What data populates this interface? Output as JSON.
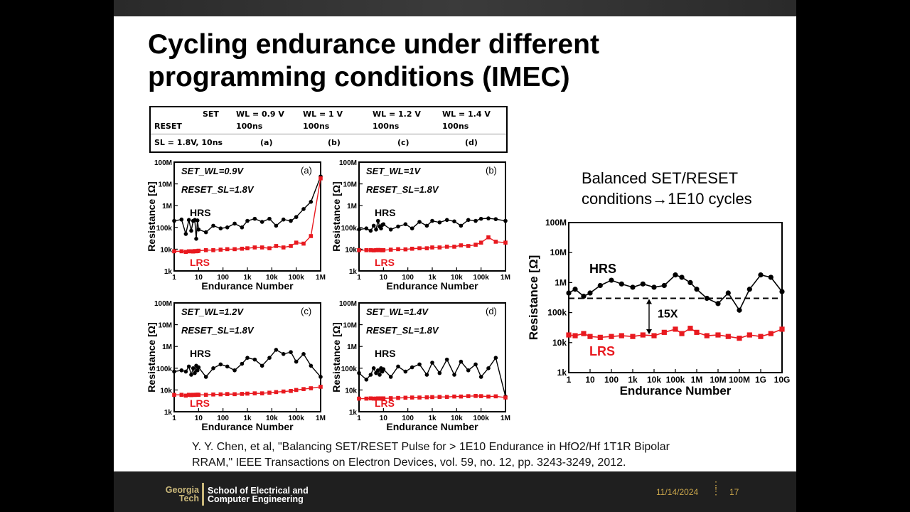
{
  "slide": {
    "title_line1": "Cycling endurance under different",
    "title_line2": "programming conditions (IMEC)",
    "note_line1": "Balanced SET/RESET",
    "note_line2": "conditions→1E10 cycles",
    "citation_line1": "Y. Y. Chen, et al, \"Balancing SET/RESET Pulse for > 1E10 Endurance in HfO2/Hf 1T1R Bipolar",
    "citation_line2": "RRAM,\" IEEE Transactions on Electron Devices, vol. 59, no. 12, pp. 3243-3249, 2012."
  },
  "table": {
    "set": "SET",
    "reset": "RESET",
    "sl": "SL = 1.8V, 10ns",
    "cols": [
      {
        "wl": "WL = 0.9 V",
        "t": "100ns",
        "tag": "(a)"
      },
      {
        "wl": "WL = 1 V",
        "t": "100ns",
        "tag": "(b)"
      },
      {
        "wl": "WL = 1.2 V",
        "t": "100ns",
        "tag": "(c)"
      },
      {
        "wl": "WL = 1.4 V",
        "t": "100ns",
        "tag": "(d)"
      }
    ]
  },
  "footer": {
    "logo_top": "Georgia",
    "logo_bottom": "Tech",
    "school_line1": "School of Electrical and",
    "school_line2": "Computer Engineering",
    "date": "11/14/2024",
    "page": "17"
  },
  "colors": {
    "hrs": "#000000",
    "lrs": "#e8191f",
    "accent": "#c9a54b"
  },
  "chart_data": [
    {
      "type": "scatter",
      "panel": "(a)",
      "annotations": [
        "SET_WL=0.9V",
        "RESET_SL=1.8V"
      ],
      "xlabel": "Endurance Number",
      "ylabel": "Resistance [Ω]",
      "xlim": [
        1,
        1000000
      ],
      "ylim": [
        1000,
        100000000
      ],
      "xscale": "log",
      "yscale": "log",
      "x_ticks": [
        "1",
        "10",
        "100",
        "1k",
        "10k",
        "100k",
        "1M"
      ],
      "y_ticks": [
        "1k",
        "10k",
        "100k",
        "1M",
        "10M",
        "100M"
      ],
      "series": [
        {
          "name": "HRS",
          "x": [
            1,
            2,
            3,
            4,
            5,
            6,
            7,
            8,
            9,
            10,
            20,
            40,
            80,
            150,
            300,
            600,
            1000,
            2000,
            4000,
            8000,
            15000,
            30000,
            60000,
            100000,
            200000,
            400000,
            1000000
          ],
          "y": [
            200000,
            230000,
            50000,
            220000,
            70000,
            200000,
            220000,
            30000,
            210000,
            80000,
            60000,
            120000,
            90000,
            100000,
            150000,
            100000,
            200000,
            250000,
            180000,
            250000,
            120000,
            230000,
            200000,
            300000,
            700000,
            1500000,
            22000000
          ]
        },
        {
          "name": "LRS",
          "x": [
            1,
            2,
            3,
            4,
            5,
            6,
            7,
            8,
            9,
            10,
            20,
            40,
            80,
            150,
            300,
            600,
            1000,
            2000,
            4000,
            8000,
            15000,
            30000,
            60000,
            100000,
            200000,
            400000,
            1000000
          ],
          "y": [
            8000,
            8000,
            7500,
            8000,
            8000,
            7800,
            8200,
            8000,
            8100,
            8500,
            9000,
            9000,
            9500,
            10000,
            10000,
            10500,
            11000,
            12000,
            12000,
            11000,
            14000,
            12000,
            14000,
            20000,
            18000,
            40000,
            18000000
          ]
        }
      ]
    },
    {
      "type": "scatter",
      "panel": "(b)",
      "annotations": [
        "SET_WL=1V",
        "RESET_SL=1.8V"
      ],
      "xlabel": "Endurance Number",
      "ylabel": "Resistance [Ω]",
      "xlim": [
        1,
        1000000
      ],
      "ylim": [
        1000,
        100000000
      ],
      "xscale": "log",
      "yscale": "log",
      "x_ticks": [
        "1",
        "10",
        "100",
        "1k",
        "10k",
        "100k",
        "1M"
      ],
      "y_ticks": [
        "1k",
        "10k",
        "100k",
        "1M",
        "10M",
        "100M"
      ],
      "series": [
        {
          "name": "HRS",
          "x": [
            1,
            2,
            3,
            4,
            5,
            6,
            7,
            8,
            9,
            10,
            20,
            40,
            80,
            150,
            300,
            600,
            1000,
            2000,
            4000,
            8000,
            15000,
            30000,
            60000,
            100000,
            200000,
            400000,
            1000000
          ],
          "y": [
            80000,
            90000,
            70000,
            120000,
            80000,
            200000,
            110000,
            90000,
            130000,
            140000,
            80000,
            110000,
            140000,
            90000,
            180000,
            120000,
            200000,
            170000,
            220000,
            190000,
            120000,
            220000,
            200000,
            250000,
            260000,
            240000,
            200000
          ]
        },
        {
          "name": "LRS",
          "x": [
            1,
            2,
            3,
            4,
            5,
            6,
            7,
            8,
            9,
            10,
            20,
            40,
            80,
            150,
            300,
            600,
            1000,
            2000,
            4000,
            8000,
            15000,
            30000,
            60000,
            100000,
            200000,
            400000,
            1000000
          ],
          "y": [
            9000,
            9000,
            9000,
            8800,
            9000,
            9200,
            9000,
            9100,
            8900,
            9000,
            9500,
            10000,
            9800,
            10500,
            11000,
            11000,
            12000,
            12000,
            13000,
            13000,
            15000,
            14000,
            16000,
            20000,
            35000,
            22000,
            20000
          ]
        }
      ]
    },
    {
      "type": "scatter",
      "panel": "(c)",
      "annotations": [
        "SET_WL=1.2V",
        "RESET_SL=1.8V"
      ],
      "xlabel": "Endurance Number",
      "ylabel": "Resistance [Ω]",
      "xlim": [
        1,
        1000000
      ],
      "ylim": [
        1000,
        100000000
      ],
      "xscale": "log",
      "yscale": "log",
      "x_ticks": [
        "1",
        "10",
        "100",
        "1k",
        "10k",
        "100k",
        "1M"
      ],
      "y_ticks": [
        "1k",
        "10k",
        "100k",
        "1M",
        "10M",
        "100M"
      ],
      "series": [
        {
          "name": "HRS",
          "x": [
            1,
            2,
            3,
            4,
            5,
            6,
            7,
            8,
            9,
            10,
            20,
            40,
            80,
            150,
            300,
            600,
            1000,
            2000,
            4000,
            8000,
            15000,
            30000,
            60000,
            100000,
            200000,
            400000,
            1000000
          ],
          "y": [
            70000,
            80000,
            70000,
            120000,
            50000,
            100000,
            60000,
            130000,
            80000,
            110000,
            40000,
            100000,
            150000,
            120000,
            80000,
            160000,
            300000,
            250000,
            130000,
            300000,
            700000,
            450000,
            550000,
            200000,
            450000,
            130000,
            40000
          ]
        },
        {
          "name": "LRS",
          "x": [
            1,
            2,
            3,
            4,
            5,
            6,
            7,
            8,
            9,
            10,
            20,
            40,
            80,
            150,
            300,
            600,
            1000,
            2000,
            4000,
            8000,
            15000,
            30000,
            60000,
            100000,
            200000,
            400000,
            1000000
          ],
          "y": [
            6000,
            6000,
            5500,
            6000,
            5800,
            6000,
            5900,
            6000,
            6100,
            6000,
            6000,
            6200,
            6300,
            6500,
            6400,
            6600,
            6800,
            7000,
            7000,
            7500,
            8000,
            8500,
            9000,
            10000,
            11000,
            12000,
            14000
          ]
        }
      ]
    },
    {
      "type": "scatter",
      "panel": "(d)",
      "annotations": [
        "SET_WL=1.4V",
        "RESET_SL=1.8V"
      ],
      "xlabel": "Endurance Number",
      "ylabel": "Resistance [Ω]",
      "xlim": [
        1,
        1000000
      ],
      "ylim": [
        1000,
        100000000
      ],
      "xscale": "log",
      "yscale": "log",
      "x_ticks": [
        "1",
        "10",
        "100",
        "1k",
        "10k",
        "100k",
        "1M"
      ],
      "y_ticks": [
        "1k",
        "10k",
        "100k",
        "1M",
        "10M",
        "100M"
      ],
      "series": [
        {
          "name": "HRS",
          "x": [
            1,
            2,
            3,
            4,
            5,
            6,
            7,
            8,
            9,
            10,
            20,
            40,
            80,
            150,
            300,
            600,
            1000,
            2000,
            4000,
            8000,
            15000,
            30000,
            60000,
            100000,
            200000,
            400000,
            1000000
          ],
          "y": [
            60000,
            30000,
            50000,
            100000,
            60000,
            80000,
            50000,
            100000,
            70000,
            90000,
            40000,
            120000,
            70000,
            110000,
            150000,
            50000,
            180000,
            60000,
            250000,
            50000,
            200000,
            80000,
            150000,
            40000,
            100000,
            300000,
            5000
          ]
        },
        {
          "name": "LRS",
          "x": [
            1,
            2,
            3,
            4,
            5,
            6,
            7,
            8,
            9,
            10,
            20,
            40,
            80,
            150,
            300,
            600,
            1000,
            2000,
            4000,
            8000,
            15000,
            30000,
            60000,
            100000,
            200000,
            400000,
            1000000
          ],
          "y": [
            4000,
            4000,
            4100,
            4000,
            4000,
            4100,
            4000,
            4100,
            4000,
            4100,
            4200,
            4300,
            4400,
            4500,
            4500,
            4600,
            4700,
            4800,
            4800,
            5000,
            5000,
            5200,
            5300,
            5200,
            5000,
            5100,
            4500
          ]
        }
      ]
    },
    {
      "type": "scatter",
      "panel": "balanced",
      "xlabel": "Endurance Number",
      "ylabel": "Resistance [Ω]",
      "xlim": [
        1,
        10000000000
      ],
      "ylim": [
        1000,
        100000000
      ],
      "xscale": "log",
      "yscale": "log",
      "x_ticks": [
        "1",
        "10",
        "100",
        "1k",
        "10k",
        "100k",
        "1M",
        "10M",
        "100M",
        "1G",
        "10G"
      ],
      "y_ticks": [
        "1k",
        "10k",
        "100k",
        "1M",
        "10M",
        "100M"
      ],
      "annotations": [
        "15X"
      ],
      "threshold": 300000,
      "series": [
        {
          "name": "HRS",
          "x": [
            1,
            2,
            5,
            10,
            30,
            100,
            300,
            1000,
            3000,
            10000,
            30000,
            100000,
            200000,
            500000,
            1000000,
            3000000,
            10000000,
            30000000,
            100000000,
            300000000,
            1000000000,
            3000000000,
            10000000000
          ],
          "y": [
            450000,
            600000,
            350000,
            450000,
            800000,
            1200000,
            900000,
            700000,
            900000,
            700000,
            800000,
            1800000,
            1500000,
            1000000,
            600000,
            300000,
            200000,
            450000,
            120000,
            600000,
            1800000,
            1500000,
            500000
          ]
        },
        {
          "name": "LRS",
          "x": [
            1,
            2,
            5,
            10,
            30,
            100,
            300,
            1000,
            3000,
            10000,
            30000,
            100000,
            200000,
            500000,
            1000000,
            3000000,
            10000000,
            30000000,
            100000000,
            300000000,
            1000000000,
            3000000000,
            10000000000
          ],
          "y": [
            18000,
            17000,
            20000,
            16000,
            15000,
            16000,
            17000,
            16000,
            18000,
            17000,
            22000,
            28000,
            20000,
            30000,
            22000,
            17000,
            18000,
            16000,
            14000,
            18000,
            16000,
            20000,
            28000
          ]
        }
      ]
    }
  ]
}
